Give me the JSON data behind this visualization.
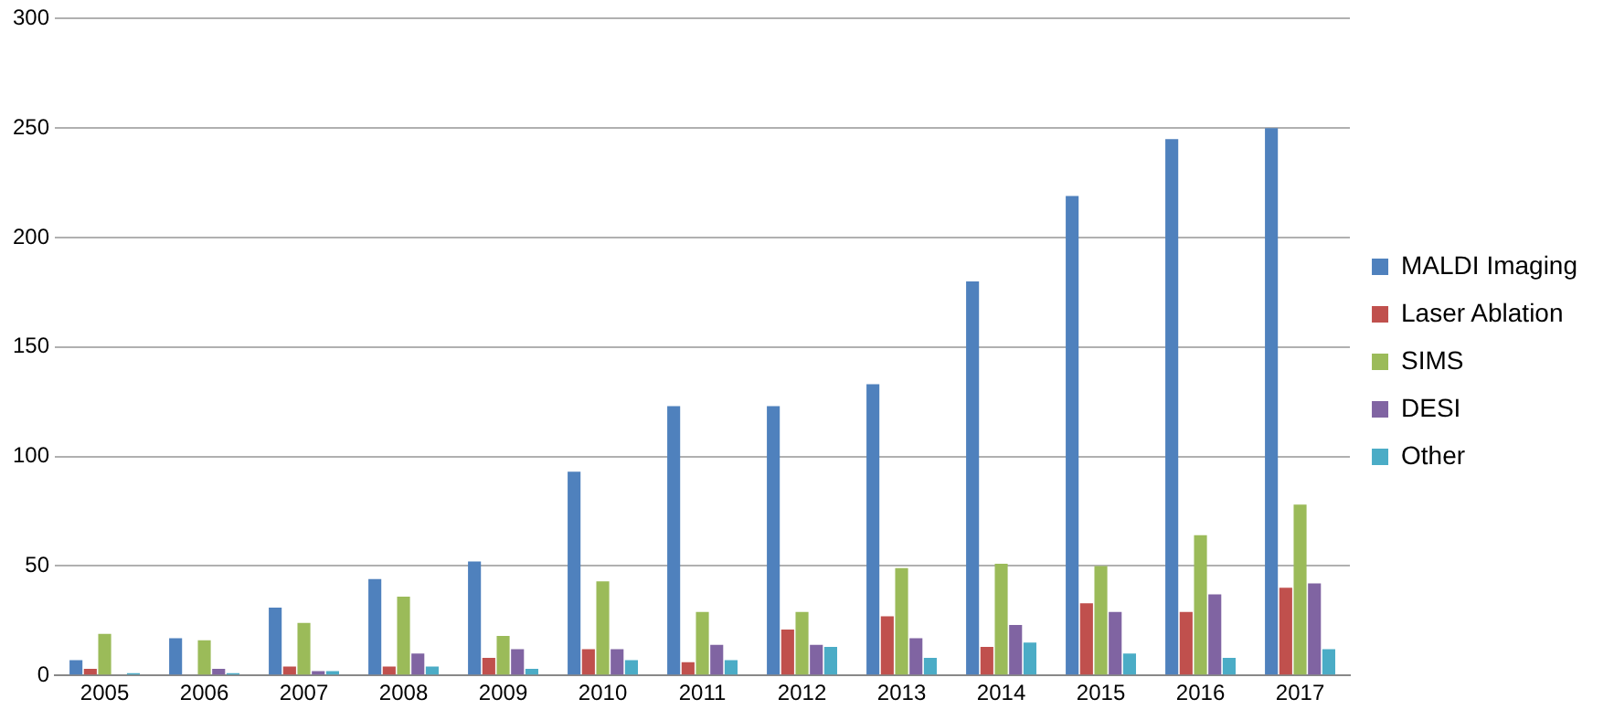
{
  "chart_data": {
    "type": "bar",
    "categories": [
      "2005",
      "2006",
      "2007",
      "2008",
      "2009",
      "2010",
      "2011",
      "2012",
      "2013",
      "2014",
      "2015",
      "2016",
      "2017"
    ],
    "series": [
      {
        "name": "MALDI Imaging",
        "color": "#4f81bd",
        "values": [
          7,
          17,
          31,
          44,
          52,
          93,
          123,
          123,
          133,
          180,
          219,
          245,
          250
        ]
      },
      {
        "name": "Laser Ablation",
        "color": "#c0504d",
        "values": [
          3,
          0,
          4,
          4,
          8,
          12,
          6,
          21,
          27,
          13,
          33,
          29,
          40
        ]
      },
      {
        "name": "SIMS",
        "color": "#9bbb59",
        "values": [
          19,
          16,
          24,
          36,
          18,
          43,
          29,
          29,
          49,
          51,
          50,
          64,
          78
        ]
      },
      {
        "name": "DESI",
        "color": "#8064a2",
        "values": [
          null,
          3,
          2,
          10,
          12,
          12,
          14,
          14,
          17,
          23,
          29,
          37,
          42
        ]
      },
      {
        "name": "Other",
        "color": "#4bacc6",
        "values": [
          1,
          1,
          2,
          4,
          3,
          7,
          7,
          13,
          8,
          15,
          10,
          8,
          12
        ]
      }
    ],
    "ylim": [
      0,
      300
    ],
    "yticks": [
      0,
      50,
      100,
      150,
      200,
      250,
      300
    ],
    "grid": "y",
    "legend": "right"
  }
}
